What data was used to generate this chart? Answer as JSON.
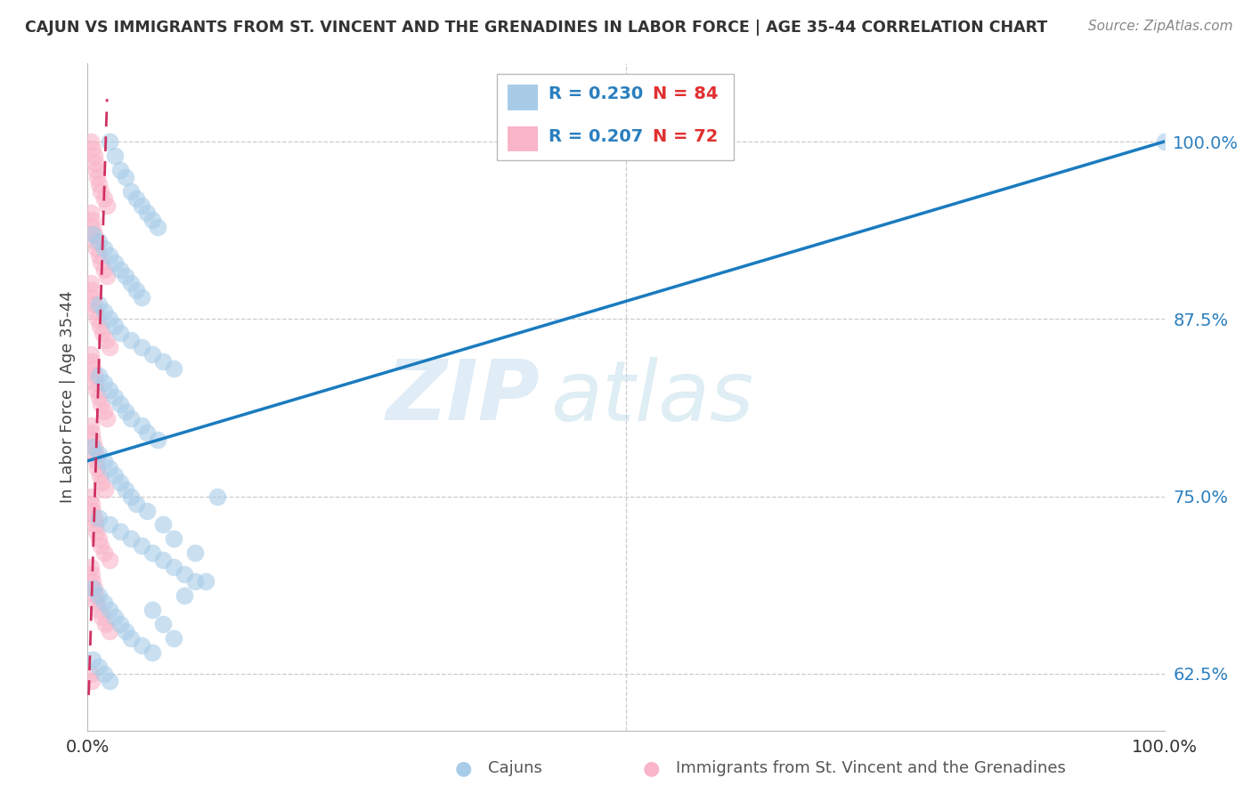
{
  "title": "CAJUN VS IMMIGRANTS FROM ST. VINCENT AND THE GRENADINES IN LABOR FORCE | AGE 35-44 CORRELATION CHART",
  "source": "Source: ZipAtlas.com",
  "ylabel": "In Labor Force | Age 35-44",
  "yticks": [
    0.625,
    0.75,
    0.875,
    1.0
  ],
  "ytick_labels": [
    "62.5%",
    "75.0%",
    "87.5%",
    "100.0%"
  ],
  "xtick_labels": [
    "0.0%",
    "",
    "",
    "",
    "100.0%"
  ],
  "legend_blue_r": "R = 0.230",
  "legend_blue_n": "N = 84",
  "legend_pink_r": "R = 0.207",
  "legend_pink_n": "N = 72",
  "blue_color": "#a8cce8",
  "pink_color": "#f9b4c8",
  "trendline_blue": "#1a7bbf",
  "trendline_pink": "#d03060",
  "watermark_zip": "ZIP",
  "watermark_atlas": "atlas",
  "blue_scatter_x": [
    0.02,
    0.025,
    0.03,
    0.035,
    0.04,
    0.045,
    0.05,
    0.055,
    0.06,
    0.065,
    0.005,
    0.01,
    0.015,
    0.02,
    0.025,
    0.03,
    0.035,
    0.04,
    0.045,
    0.05,
    0.01,
    0.015,
    0.02,
    0.025,
    0.03,
    0.04,
    0.05,
    0.06,
    0.07,
    0.08,
    0.01,
    0.015,
    0.02,
    0.025,
    0.03,
    0.035,
    0.04,
    0.05,
    0.055,
    0.065,
    0.005,
    0.01,
    0.015,
    0.02,
    0.025,
    0.03,
    0.035,
    0.04,
    0.045,
    0.055,
    0.01,
    0.02,
    0.03,
    0.04,
    0.05,
    0.06,
    0.07,
    0.08,
    0.09,
    0.1,
    0.005,
    0.01,
    0.015,
    0.02,
    0.025,
    0.03,
    0.035,
    0.04,
    0.05,
    0.06,
    0.005,
    0.01,
    0.015,
    0.02,
    0.12,
    0.08,
    0.09,
    0.1,
    0.11,
    0.07,
    0.06,
    0.07,
    0.08,
    1.0
  ],
  "blue_scatter_y": [
    1.0,
    0.99,
    0.98,
    0.975,
    0.965,
    0.96,
    0.955,
    0.95,
    0.945,
    0.94,
    0.935,
    0.93,
    0.925,
    0.92,
    0.915,
    0.91,
    0.905,
    0.9,
    0.895,
    0.89,
    0.885,
    0.88,
    0.875,
    0.87,
    0.865,
    0.86,
    0.855,
    0.85,
    0.845,
    0.84,
    0.835,
    0.83,
    0.825,
    0.82,
    0.815,
    0.81,
    0.805,
    0.8,
    0.795,
    0.79,
    0.785,
    0.78,
    0.775,
    0.77,
    0.765,
    0.76,
    0.755,
    0.75,
    0.745,
    0.74,
    0.735,
    0.73,
    0.725,
    0.72,
    0.715,
    0.71,
    0.705,
    0.7,
    0.695,
    0.69,
    0.685,
    0.68,
    0.675,
    0.67,
    0.665,
    0.66,
    0.655,
    0.65,
    0.645,
    0.64,
    0.635,
    0.63,
    0.625,
    0.62,
    0.75,
    0.72,
    0.68,
    0.71,
    0.69,
    0.73,
    0.67,
    0.66,
    0.65,
    1.0
  ],
  "pink_scatter_x": [
    0.003,
    0.005,
    0.006,
    0.007,
    0.008,
    0.009,
    0.01,
    0.012,
    0.015,
    0.018,
    0.003,
    0.004,
    0.005,
    0.006,
    0.007,
    0.008,
    0.01,
    0.012,
    0.015,
    0.018,
    0.003,
    0.004,
    0.005,
    0.006,
    0.007,
    0.009,
    0.011,
    0.014,
    0.017,
    0.02,
    0.003,
    0.004,
    0.005,
    0.006,
    0.007,
    0.008,
    0.01,
    0.012,
    0.015,
    0.018,
    0.003,
    0.004,
    0.005,
    0.006,
    0.007,
    0.008,
    0.009,
    0.011,
    0.013,
    0.016,
    0.003,
    0.004,
    0.005,
    0.006,
    0.007,
    0.008,
    0.01,
    0.012,
    0.015,
    0.02,
    0.003,
    0.004,
    0.005,
    0.006,
    0.007,
    0.008,
    0.01,
    0.013,
    0.016,
    0.02,
    0.003,
    0.004
  ],
  "pink_scatter_y": [
    1.0,
    0.995,
    0.99,
    0.985,
    0.98,
    0.975,
    0.97,
    0.965,
    0.96,
    0.955,
    0.95,
    0.945,
    0.94,
    0.935,
    0.93,
    0.925,
    0.92,
    0.915,
    0.91,
    0.905,
    0.9,
    0.895,
    0.89,
    0.885,
    0.88,
    0.875,
    0.87,
    0.865,
    0.86,
    0.855,
    0.85,
    0.845,
    0.84,
    0.835,
    0.83,
    0.825,
    0.82,
    0.815,
    0.81,
    0.805,
    0.8,
    0.795,
    0.79,
    0.785,
    0.78,
    0.775,
    0.77,
    0.765,
    0.76,
    0.755,
    0.75,
    0.745,
    0.74,
    0.735,
    0.73,
    0.725,
    0.72,
    0.715,
    0.71,
    0.705,
    0.7,
    0.695,
    0.69,
    0.685,
    0.68,
    0.675,
    0.67,
    0.665,
    0.66,
    0.655,
    0.625,
    0.62
  ],
  "trend_blue_x0": 0.0,
  "trend_blue_y0": 0.775,
  "trend_blue_x1": 1.0,
  "trend_blue_y1": 1.0,
  "trend_pink_x0": 0.001,
  "trend_pink_y0": 0.61,
  "trend_pink_x1": 0.018,
  "trend_pink_y1": 1.03,
  "xmin": 0.0,
  "xmax": 1.0,
  "ymin": 0.585,
  "ymax": 1.055
}
